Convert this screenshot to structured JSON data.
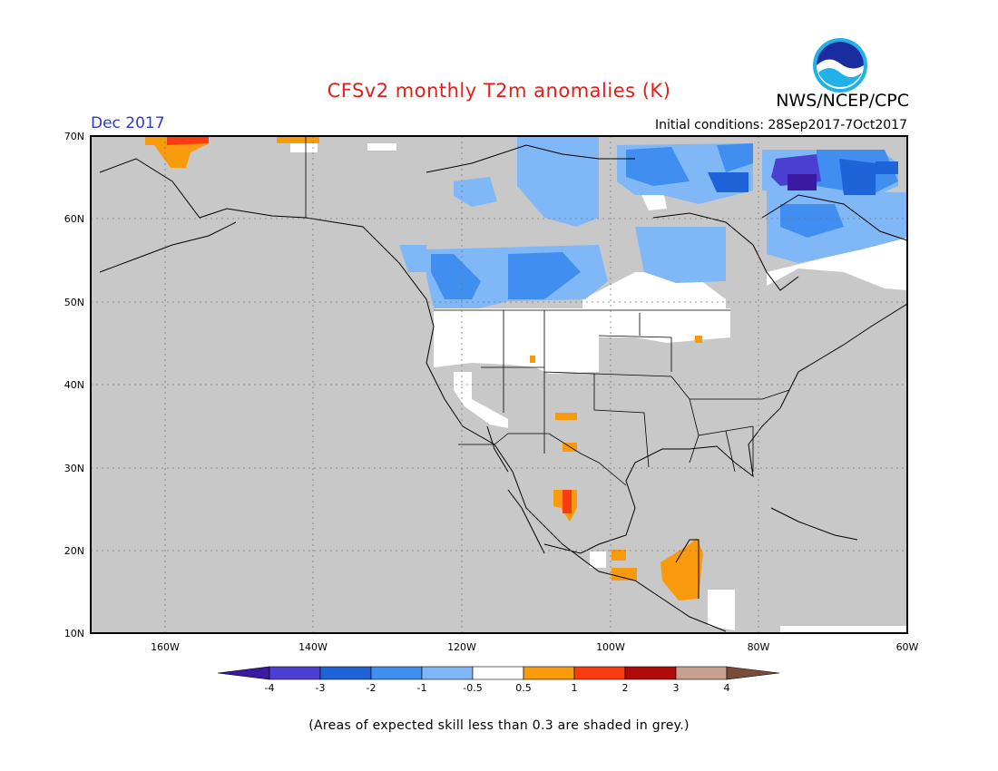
{
  "title": "CFSv2 monthly T2m anomalies (K)",
  "organization": "NWS/NCEP/CPC",
  "logo_text": "NOAA",
  "forecast_month": "Dec 2017",
  "initial_conditions": "Initial conditions: 28Sep2017-7Oct2017",
  "footnote": "(Areas of expected skill less than 0.3 are shaded in grey.)",
  "map": {
    "lon_range": [
      -170,
      -60
    ],
    "lat_range": [
      10,
      70
    ],
    "lat_ticks": [
      "10N",
      "20N",
      "30N",
      "40N",
      "50N",
      "60N",
      "70N"
    ],
    "lon_ticks": [
      "160W",
      "140W",
      "120W",
      "100W",
      "80W",
      "60W"
    ],
    "grid": "dotted",
    "skill_mask_color": "#c8c8c8"
  },
  "colorbar": {
    "labels": [
      "-4",
      "-3",
      "-2",
      "-1",
      "-0.5",
      "0.5",
      "1",
      "2",
      "3",
      "4"
    ],
    "colors": [
      "#3a1aa0",
      "#4a3fd0",
      "#1f63d8",
      "#3f8ef0",
      "#7fb7f7",
      "#ffffff",
      "#f99a0c",
      "#fa3c11",
      "#b00a0a",
      "#c8a08f",
      "#7a4a3c"
    ]
  }
}
